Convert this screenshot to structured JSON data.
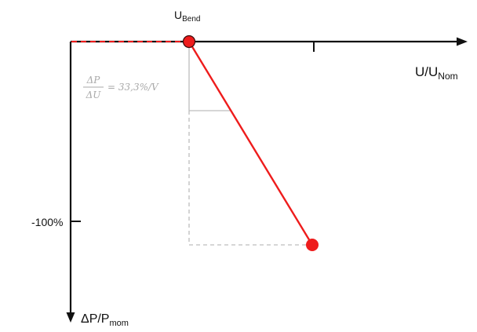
{
  "diagram": {
    "bend_label": {
      "main": "U",
      "sub": "Bend"
    },
    "x_axis_label": {
      "main": "U/U",
      "sub": "Nom"
    },
    "y_axis_label": {
      "main": "ΔP/P",
      "sub": "mom"
    },
    "y_tick_label": "-100%",
    "slope": {
      "numerator": "ΔP",
      "denominator": "ΔU",
      "value": "= 33,3%/V"
    },
    "colors": {
      "axis": "#111111",
      "curve": "#ee1c1c",
      "helper": "#bdbdbd",
      "annotation": "#a9a9a9"
    },
    "line_style": {
      "x_axis_prefix": "dashed red",
      "helper_lines": "dashed grey"
    }
  }
}
